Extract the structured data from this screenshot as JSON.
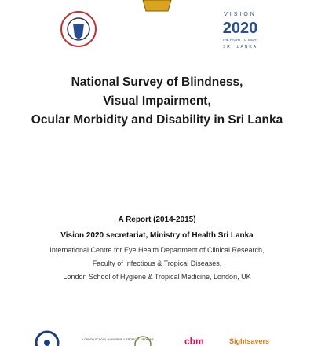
{
  "header": {
    "vision_logo": {
      "word": "VISION",
      "number": "2020",
      "tagline": "THE RIGHT TO SIGHT",
      "country": "SRI LANKA"
    }
  },
  "title": {
    "lines": [
      "National Survey of Blindness,",
      "Visual Impairment,",
      "Ocular Morbidity and Disability in Sri Lanka"
    ]
  },
  "report": {
    "period": "A Report (2014-2015)",
    "secretariat": "Vision 2020 secretariat, Ministry of Health Sri Lanka",
    "lines": [
      "International Centre for Eye Health Department of Clinical Research,",
      "Faculty of Infectious & Tropical Diseases,",
      "London School of Hygiene & Tropical Medicine, London, UK"
    ]
  },
  "footer": {
    "logos": [
      "LONDON SCHOOL of HYGIENE & TROPICAL MEDICINE",
      "cbm",
      "Sightsavers"
    ]
  }
}
